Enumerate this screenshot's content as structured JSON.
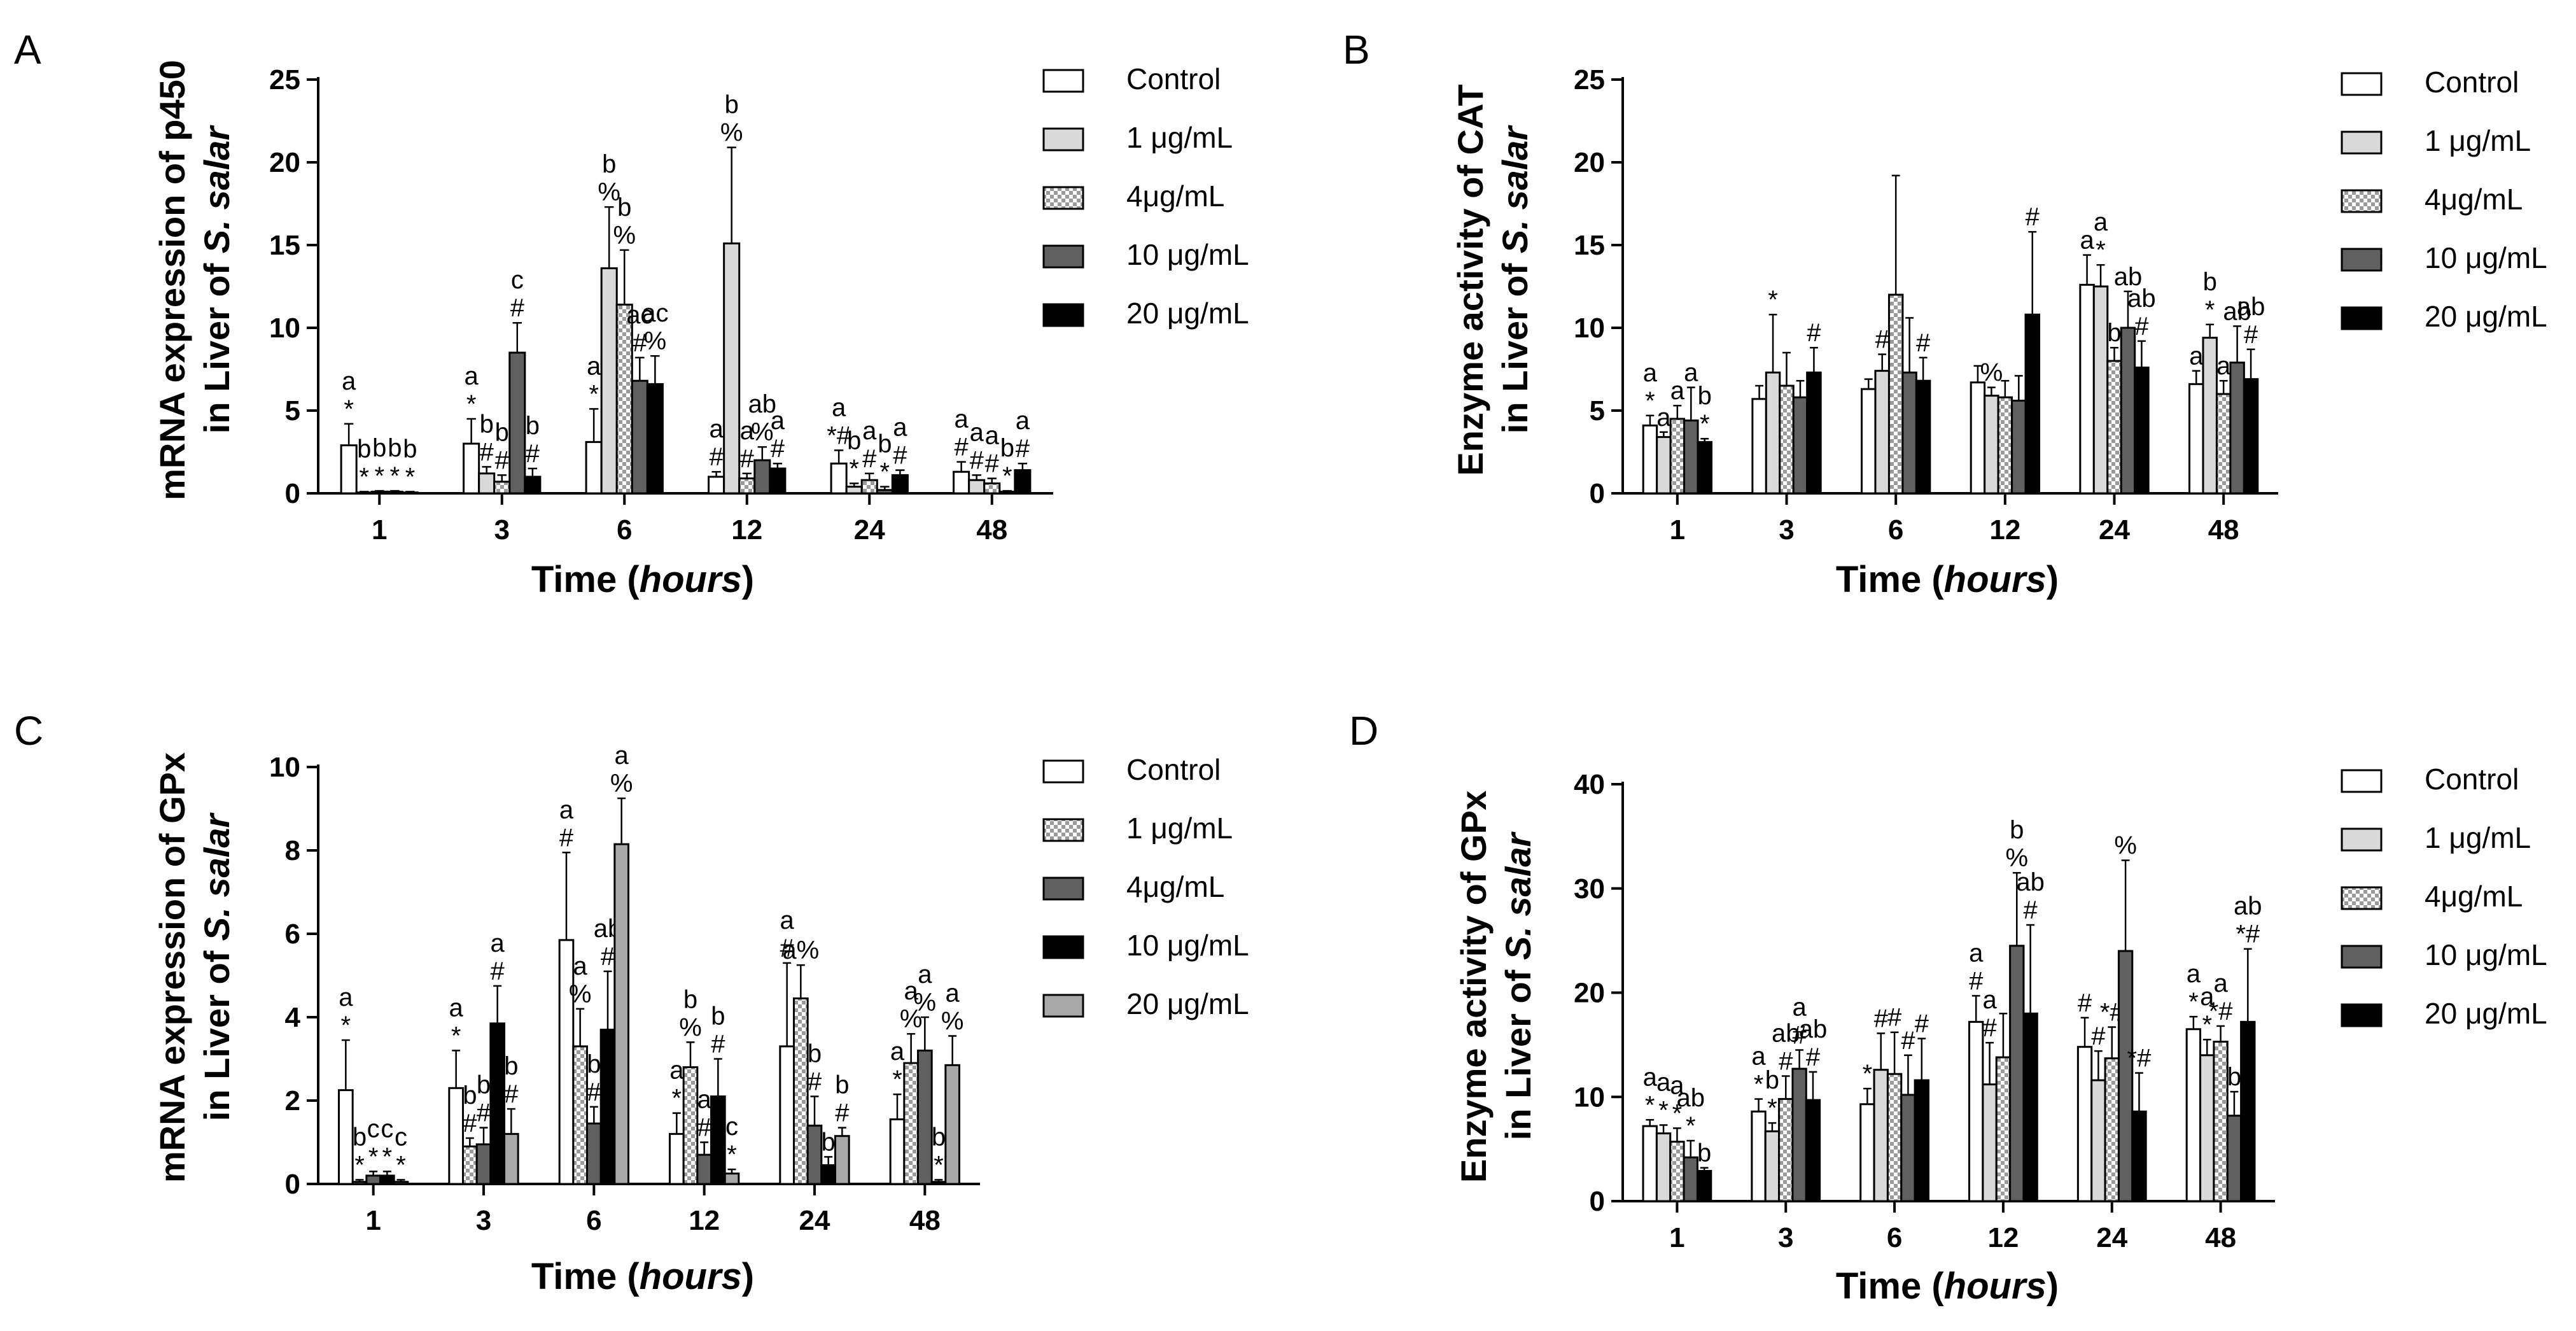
{
  "figure": {
    "colors": {
      "white": "#ffffff",
      "light": "#d9d9d9",
      "dark": "#606060",
      "black": "#000000",
      "lightgray": "#a8a8a8"
    }
  },
  "chart_data": [
    {
      "id": "A",
      "type": "bar",
      "panel_label": "A",
      "ylabel_line1": "mRNA expression of p450",
      "ylabel_line2_prefix": "in Liver of ",
      "ylabel_line2_italic": "S. salar",
      "xlabel_prefix": "Time (",
      "xlabel_italic": "hours",
      "xlabel_suffix": ")",
      "categories": [
        "1",
        "3",
        "6",
        "12",
        "24",
        "48"
      ],
      "ylim": [
        0,
        25
      ],
      "yticks": [
        0,
        5,
        10,
        15,
        20,
        25
      ],
      "legend_position": "right",
      "series": [
        {
          "name": "Control",
          "fill": "white",
          "values": [
            2.9,
            3.0,
            3.1,
            1.0,
            1.8,
            1.3
          ],
          "errors": [
            1.3,
            1.5,
            2.0,
            0.3,
            0.8,
            0.6
          ],
          "annotations": [
            [
              "a",
              "*"
            ],
            [
              "a",
              "*"
            ],
            [
              "a",
              "*"
            ],
            [
              "a",
              "#"
            ],
            [
              "a",
              "*#"
            ],
            [
              "a",
              "#"
            ]
          ]
        },
        {
          "name": "1 μg/mL",
          "fill": "light",
          "values": [
            0.05,
            1.2,
            13.6,
            15.1,
            0.4,
            0.8
          ],
          "errors": [
            0.05,
            0.4,
            3.7,
            5.8,
            0.2,
            0.3
          ],
          "annotations": [
            [
              "b",
              "*"
            ],
            [
              "b",
              "#"
            ],
            [
              "b",
              "%"
            ],
            [
              "b",
              "%"
            ],
            [
              "b",
              "*"
            ],
            [
              "a",
              "#"
            ]
          ]
        },
        {
          "name": "4μg/mL",
          "fill": "check",
          "values": [
            0.1,
            0.7,
            11.4,
            0.9,
            0.8,
            0.6
          ],
          "errors": [
            0.05,
            0.4,
            3.3,
            0.3,
            0.4,
            0.3
          ],
          "annotations": [
            [
              "b",
              "*"
            ],
            [
              "b",
              "#"
            ],
            [
              "b",
              "%"
            ],
            [
              "a",
              "#"
            ],
            [
              "a",
              "#"
            ],
            [
              "a",
              "#"
            ]
          ]
        },
        {
          "name": "10 μg/mL",
          "fill": "dark",
          "values": [
            0.1,
            8.5,
            6.8,
            2.0,
            0.2,
            0.1
          ],
          "errors": [
            0.05,
            1.8,
            1.4,
            0.8,
            0.2,
            0.05
          ],
          "annotations": [
            [
              "b",
              "*"
            ],
            [
              "c",
              "#"
            ],
            [
              "ac",
              "#"
            ],
            [
              "ab",
              "%"
            ],
            [
              "b",
              "*"
            ],
            [
              "b",
              "*"
            ]
          ]
        },
        {
          "name": "20 μg/mL",
          "fill": "black",
          "values": [
            0.05,
            1.0,
            6.6,
            1.5,
            1.1,
            1.4
          ],
          "errors": [
            0.05,
            0.5,
            1.7,
            0.3,
            0.3,
            0.4
          ],
          "annotations": [
            [
              "b",
              "*"
            ],
            [
              "b",
              "#"
            ],
            [
              "ac",
              "%"
            ],
            [
              "a",
              "#"
            ],
            [
              "a",
              "#"
            ],
            [
              "a",
              "#"
            ]
          ]
        }
      ]
    },
    {
      "id": "B",
      "type": "bar",
      "panel_label": "B",
      "ylabel_line1": "Enzyme activity of CAT",
      "ylabel_line2_prefix": "in Liver of ",
      "ylabel_line2_italic": "S. salar",
      "xlabel_prefix": "Time (",
      "xlabel_italic": "hours",
      "xlabel_suffix": ")",
      "categories": [
        "1",
        "3",
        "6",
        "12",
        "24",
        "48"
      ],
      "ylim": [
        0,
        25
      ],
      "yticks": [
        0,
        5,
        10,
        15,
        20,
        25
      ],
      "legend_position": "right",
      "series": [
        {
          "name": "Control",
          "fill": "white",
          "values": [
            4.1,
            5.7,
            6.3,
            6.7,
            12.6,
            6.6
          ],
          "errors": [
            0.6,
            0.8,
            0.6,
            1.0,
            1.8,
            0.8
          ],
          "annotations": [
            [
              "a",
              "*"
            ],
            [
              "",
              ""
            ],
            [
              "",
              ""
            ],
            [
              "",
              ""
            ],
            [
              "a",
              ""
            ],
            [
              "a",
              ""
            ]
          ]
        },
        {
          "name": "1 μg/mL",
          "fill": "light",
          "values": [
            3.4,
            7.3,
            7.4,
            5.9,
            12.5,
            9.4
          ],
          "errors": [
            0.3,
            3.5,
            1.0,
            0.5,
            1.3,
            0.8
          ],
          "annotations": [
            [
              "a",
              ""
            ],
            [
              "",
              "*"
            ],
            [
              "",
              "#"
            ],
            [
              "",
              "%"
            ],
            [
              "a",
              "*"
            ],
            [
              "b",
              "*"
            ]
          ]
        },
        {
          "name": "4μg/mL",
          "fill": "check",
          "values": [
            4.5,
            6.5,
            12.0,
            5.8,
            8.0,
            6.0
          ],
          "errors": [
            0.8,
            2.0,
            7.2,
            1.0,
            0.8,
            0.8
          ],
          "annotations": [
            [
              "a",
              ""
            ],
            [
              "",
              ""
            ],
            [
              "",
              ""
            ],
            [
              "",
              ""
            ],
            [
              "b",
              ""
            ],
            [
              "a",
              ""
            ]
          ]
        },
        {
          "name": "10 μg/mL",
          "fill": "dark",
          "values": [
            4.4,
            5.8,
            7.3,
            5.6,
            10.0,
            7.9
          ],
          "errors": [
            2.0,
            1.0,
            3.3,
            1.5,
            2.2,
            2.2
          ],
          "annotations": [
            [
              "a",
              ""
            ],
            [
              "",
              ""
            ],
            [
              "",
              ""
            ],
            [
              "",
              ""
            ],
            [
              "ab",
              ""
            ],
            [
              "ab",
              ""
            ]
          ]
        },
        {
          "name": "20 μg/mL",
          "fill": "black",
          "values": [
            3.1,
            7.3,
            6.8,
            10.8,
            7.6,
            6.9
          ],
          "errors": [
            0.2,
            1.5,
            1.4,
            5.0,
            1.6,
            1.8
          ],
          "annotations": [
            [
              "b",
              "*"
            ],
            [
              "",
              "#"
            ],
            [
              "",
              "#"
            ],
            [
              "",
              "#"
            ],
            [
              "ab",
              "#"
            ],
            [
              "ab",
              "#"
            ]
          ]
        }
      ]
    },
    {
      "id": "C",
      "type": "bar",
      "panel_label": "C",
      "ylabel_line1": "mRNA expression of GPx",
      "ylabel_line2_prefix": "in Liver of ",
      "ylabel_line2_italic": "S. salar",
      "xlabel_prefix": "Time (",
      "xlabel_italic": "hours",
      "xlabel_suffix": ")",
      "categories": [
        "1",
        "3",
        "6",
        "12",
        "24",
        "48"
      ],
      "ylim": [
        0,
        10
      ],
      "yticks": [
        0,
        2,
        4,
        6,
        8,
        10
      ],
      "legend_position": "right",
      "series": [
        {
          "name": "Control",
          "fill": "white",
          "values": [
            2.25,
            2.3,
            5.85,
            1.2,
            3.3,
            1.55
          ],
          "errors": [
            1.2,
            0.9,
            2.1,
            0.5,
            2.0,
            0.6
          ],
          "annotations": [
            [
              "a",
              "*"
            ],
            [
              "a",
              "*"
            ],
            [
              "a",
              "#"
            ],
            [
              "a",
              "*"
            ],
            [
              "a",
              "#"
            ],
            [
              "a",
              "*"
            ]
          ]
        },
        {
          "name": "1 μg/mL",
          "fill": "check",
          "values": [
            0.05,
            0.9,
            3.3,
            2.8,
            4.45,
            2.9
          ],
          "errors": [
            0.05,
            0.2,
            0.9,
            0.6,
            0.8,
            0.7
          ],
          "annotations": [
            [
              "b",
              "*"
            ],
            [
              "b",
              "#"
            ],
            [
              "a",
              "%"
            ],
            [
              "b",
              "%"
            ],
            [
              "a%",
              ""
            ],
            [
              "a",
              "%"
            ]
          ]
        },
        {
          "name": "4μg/mL",
          "fill": "dark",
          "values": [
            0.2,
            0.95,
            1.45,
            0.7,
            1.4,
            3.2
          ],
          "errors": [
            0.1,
            0.4,
            0.4,
            0.3,
            0.7,
            0.8
          ],
          "annotations": [
            [
              "c",
              "*"
            ],
            [
              "b",
              "#"
            ],
            [
              "b",
              "#"
            ],
            [
              "a",
              "#"
            ],
            [
              "b",
              "#"
            ],
            [
              "a",
              "%"
            ]
          ]
        },
        {
          "name": "10 μg/mL",
          "fill": "black",
          "values": [
            0.2,
            3.85,
            3.7,
            2.1,
            0.45,
            0.05
          ],
          "errors": [
            0.1,
            0.9,
            1.4,
            0.9,
            0.2,
            0.05
          ],
          "annotations": [
            [
              "c",
              "*"
            ],
            [
              "a",
              "#"
            ],
            [
              "ab",
              "#"
            ],
            [
              "b",
              "#"
            ],
            [
              "b",
              ""
            ],
            [
              "b",
              "*"
            ]
          ]
        },
        {
          "name": "20 μg/mL",
          "fill": "lightgray",
          "values": [
            0.05,
            1.2,
            8.15,
            0.25,
            1.15,
            2.85
          ],
          "errors": [
            0.05,
            0.6,
            1.1,
            0.1,
            0.2,
            0.7
          ],
          "annotations": [
            [
              "c",
              "*"
            ],
            [
              "b",
              "#"
            ],
            [
              "a",
              "%"
            ],
            [
              "c",
              "*"
            ],
            [
              "b",
              "#"
            ],
            [
              "a",
              "%"
            ]
          ]
        }
      ]
    },
    {
      "id": "D",
      "type": "bar",
      "panel_label": "D",
      "ylabel_line1": "Enzyme activity of GPx",
      "ylabel_line2_prefix": "in Liver of ",
      "ylabel_line2_italic": "S. salar",
      "xlabel_prefix": "Time (",
      "xlabel_italic": "hours",
      "xlabel_suffix": ")",
      "categories": [
        "1",
        "3",
        "6",
        "12",
        "24",
        "48"
      ],
      "ylim": [
        0,
        40
      ],
      "yticks": [
        0,
        10,
        20,
        30,
        40
      ],
      "legend_position": "right",
      "series": [
        {
          "name": "Control",
          "fill": "white",
          "values": [
            7.2,
            8.6,
            9.3,
            17.2,
            14.8,
            16.5
          ],
          "errors": [
            0.6,
            1.2,
            1.5,
            2.5,
            2.8,
            1.2
          ],
          "annotations": [
            [
              "a",
              "*"
            ],
            [
              "a",
              "*"
            ],
            [
              "",
              "*"
            ],
            [
              "a",
              "#"
            ],
            [
              "",
              "#"
            ],
            [
              "a",
              "*"
            ]
          ]
        },
        {
          "name": "1 μg/mL",
          "fill": "light",
          "values": [
            6.5,
            6.7,
            12.6,
            11.2,
            11.6,
            14.0
          ],
          "errors": [
            0.8,
            0.8,
            3.5,
            4.0,
            2.8,
            1.5
          ],
          "annotations": [
            [
              "a",
              "*"
            ],
            [
              "b",
              "*"
            ],
            [
              "",
              "#"
            ],
            [
              "a",
              "#"
            ],
            [
              "",
              "#"
            ],
            [
              "a",
              "*"
            ]
          ]
        },
        {
          "name": "4μg/mL",
          "fill": "check",
          "values": [
            5.7,
            9.8,
            12.2,
            13.8,
            13.7,
            15.3
          ],
          "errors": [
            1.3,
            2.2,
            4.0,
            4.2,
            3.0,
            1.5
          ],
          "annotations": [
            [
              "a",
              "*"
            ],
            [
              "ab",
              "#"
            ],
            [
              "",
              "#"
            ],
            [
              "",
              ""
            ],
            [
              "",
              "*#"
            ],
            [
              "a",
              "*#"
            ]
          ]
        },
        {
          "name": "10 μg/mL",
          "fill": "dark",
          "values": [
            4.2,
            12.7,
            10.2,
            24.5,
            24.0,
            8.2
          ],
          "errors": [
            1.6,
            1.8,
            3.8,
            7.0,
            8.7,
            2.3
          ],
          "annotations": [
            [
              "ab",
              "*"
            ],
            [
              "a",
              "#"
            ],
            [
              "",
              "#"
            ],
            [
              "b",
              "%"
            ],
            [
              "",
              "%"
            ],
            [
              "b",
              ""
            ]
          ]
        },
        {
          "name": "20 μg/mL",
          "fill": "black",
          "values": [
            2.9,
            9.7,
            11.6,
            18.0,
            8.6,
            17.2
          ],
          "errors": [
            0.3,
            2.7,
            4.0,
            8.5,
            3.7,
            7.0
          ],
          "annotations": [
            [
              "b",
              ""
            ],
            [
              "ab",
              "#"
            ],
            [
              "",
              "#"
            ],
            [
              "ab",
              "#"
            ],
            [
              "",
              "*#"
            ],
            [
              "ab",
              "*#"
            ]
          ]
        }
      ]
    }
  ]
}
